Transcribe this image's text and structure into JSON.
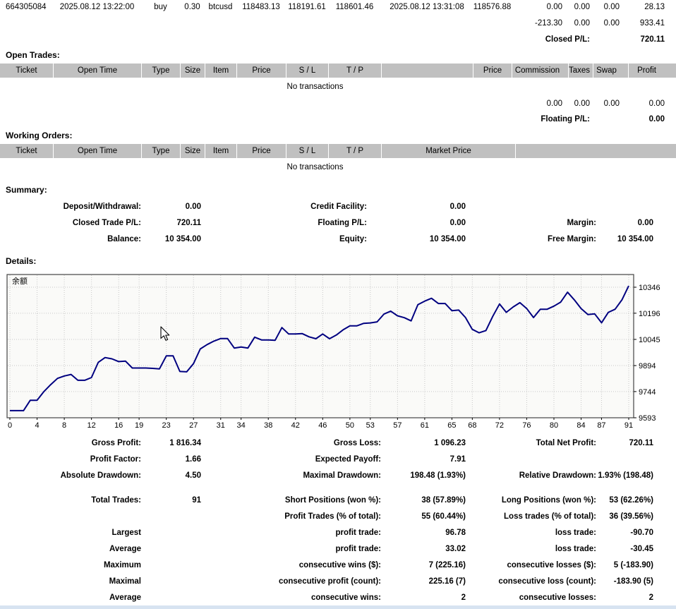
{
  "colors": {
    "header_bg": "#c0c0c0",
    "header_separator": "#ffffff",
    "chart_bg": "#fafaf8",
    "chart_border": "#444444",
    "grid": "#c8c8c8",
    "line": "#000080",
    "bottom_strip": "#d7e3f1"
  },
  "closed_trades": {
    "last_row": {
      "ticket": "664305084",
      "open_time": "2025.08.12 13:22:00",
      "type": "buy",
      "size": "0.30",
      "item": "btcusd",
      "price": "118483.13",
      "sl": "118191.61",
      "tp": "118601.46",
      "close_time": "2025.08.12 13:31:08",
      "close_price": "118576.88",
      "commission": "0.00",
      "taxes": "0.00",
      "swap": "0.00",
      "profit": "28.13"
    },
    "totals": {
      "commission": "-213.30",
      "taxes": "0.00",
      "swap": "0.00",
      "profit": "933.41"
    },
    "closed_pl_label": "Closed P/L:",
    "closed_pl_value": "720.11"
  },
  "open_trades": {
    "heading": "Open Trades:",
    "columns": [
      "Ticket",
      "Open Time",
      "Type",
      "Size",
      "Item",
      "Price",
      "S / L",
      "T / P",
      "",
      "Price",
      "Commission",
      "Taxes",
      "Swap",
      "Profit"
    ],
    "empty_text": "No transactions",
    "totals": {
      "commission": "0.00",
      "taxes": "0.00",
      "swap": "0.00",
      "profit": "0.00"
    },
    "floating_pl_label": "Floating P/L:",
    "floating_pl_value": "0.00"
  },
  "working_orders": {
    "heading": "Working Orders:",
    "columns": [
      "Ticket",
      "Open Time",
      "Type",
      "Size",
      "Item",
      "Price",
      "S / L",
      "T / P",
      "Market Price",
      ""
    ],
    "empty_text": "No transactions"
  },
  "summary": {
    "heading": "Summary:",
    "rows": [
      {
        "l1": "Deposit/Withdrawal:",
        "v1": "0.00",
        "l2": "Credit Facility:",
        "v2": "0.00",
        "l3": "",
        "v3": ""
      },
      {
        "l1": "Closed Trade P/L:",
        "v1": "720.11",
        "l2": "Floating P/L:",
        "v2": "0.00",
        "l3": "Margin:",
        "v3": "0.00"
      },
      {
        "l1": "Balance:",
        "v1": "10 354.00",
        "l2": "Equity:",
        "v2": "10 354.00",
        "l3": "Free Margin:",
        "v3": "10 354.00"
      }
    ]
  },
  "details": {
    "heading": "Details:",
    "rows_top": [
      {
        "l1": "Gross Profit:",
        "v1": "1 816.34",
        "l2": "Gross Loss:",
        "v2": "1 096.23",
        "l3": "Total Net Profit:",
        "v3": "720.11"
      },
      {
        "l1": "Profit Factor:",
        "v1": "1.66",
        "l2": "Expected Payoff:",
        "v2": "7.91",
        "l3": "",
        "v3": ""
      },
      {
        "l1": "Absolute Drawdown:",
        "v1": "4.50",
        "l2": "Maximal Drawdown:",
        "v2": "198.48 (1.93%)",
        "l3": "Relative Drawdown:",
        "v3": "1.93% (198.48)"
      }
    ],
    "rows_bottom": [
      {
        "l1": "Total Trades:",
        "v1": "91",
        "l2": "Short Positions (won %):",
        "v2": "38 (57.89%)",
        "l3": "Long Positions (won %):",
        "v3": "53 (62.26%)"
      },
      {
        "l1": "",
        "v1": "",
        "l2": "Profit Trades (% of total):",
        "v2": "55 (60.44%)",
        "l3": "Loss trades (% of total):",
        "v3": "36 (39.56%)"
      },
      {
        "l1": "Largest",
        "v1": "",
        "l2": "profit trade:",
        "v2": "96.78",
        "l3": "loss trade:",
        "v3": "-90.70"
      },
      {
        "l1": "Average",
        "v1": "",
        "l2": "profit trade:",
        "v2": "33.02",
        "l3": "loss trade:",
        "v3": "-30.45"
      },
      {
        "l1": "Maximum",
        "v1": "",
        "l2": "consecutive wins ($):",
        "v2": "7 (225.16)",
        "l3": "consecutive losses ($):",
        "v3": "5 (-183.90)"
      },
      {
        "l1": "Maximal",
        "v1": "",
        "l2": "consecutive profit (count):",
        "v2": "225.16 (7)",
        "l3": "consecutive loss (count):",
        "v3": "-183.90 (5)"
      },
      {
        "l1": "Average",
        "v1": "",
        "l2": "consecutive wins:",
        "v2": "2",
        "l3": "consecutive losses:",
        "v3": "2"
      }
    ]
  },
  "chart_data": {
    "type": "line",
    "title": "",
    "legend": "余额",
    "xlabel": "",
    "ylabel": "",
    "ylim": [
      9593,
      10346
    ],
    "x_ticks": [
      0,
      4,
      8,
      12,
      16,
      19,
      23,
      27,
      31,
      34,
      38,
      42,
      46,
      50,
      53,
      57,
      61,
      65,
      68,
      72,
      76,
      80,
      84,
      87,
      91
    ],
    "y_ticks": [
      9593,
      9744,
      9894,
      10045,
      10196,
      10346
    ],
    "grid": true,
    "line_color": "#000080",
    "values": [
      9634,
      9634,
      9634,
      9694,
      9694,
      9744,
      9784,
      9820,
      9834,
      9843,
      9809,
      9809,
      9825,
      9913,
      9940,
      9933,
      9917,
      9920,
      9880,
      9880,
      9880,
      9878,
      9875,
      9950,
      9950,
      9860,
      9858,
      9905,
      9990,
      10015,
      10035,
      10050,
      10050,
      9995,
      10001,
      9995,
      10058,
      10042,
      10042,
      10040,
      10113,
      10076,
      10076,
      10078,
      10060,
      10049,
      10076,
      10049,
      10070,
      10100,
      10123,
      10123,
      10137,
      10140,
      10146,
      10191,
      10208,
      10181,
      10170,
      10152,
      10245,
      10266,
      10282,
      10252,
      10252,
      10211,
      10214,
      10171,
      10103,
      10083,
      10096,
      10178,
      10249,
      10201,
      10232,
      10257,
      10223,
      10171,
      10219,
      10219,
      10237,
      10260,
      10317,
      10273,
      10223,
      10188,
      10192,
      10141,
      10201,
      10219,
      10273,
      10354
    ]
  }
}
